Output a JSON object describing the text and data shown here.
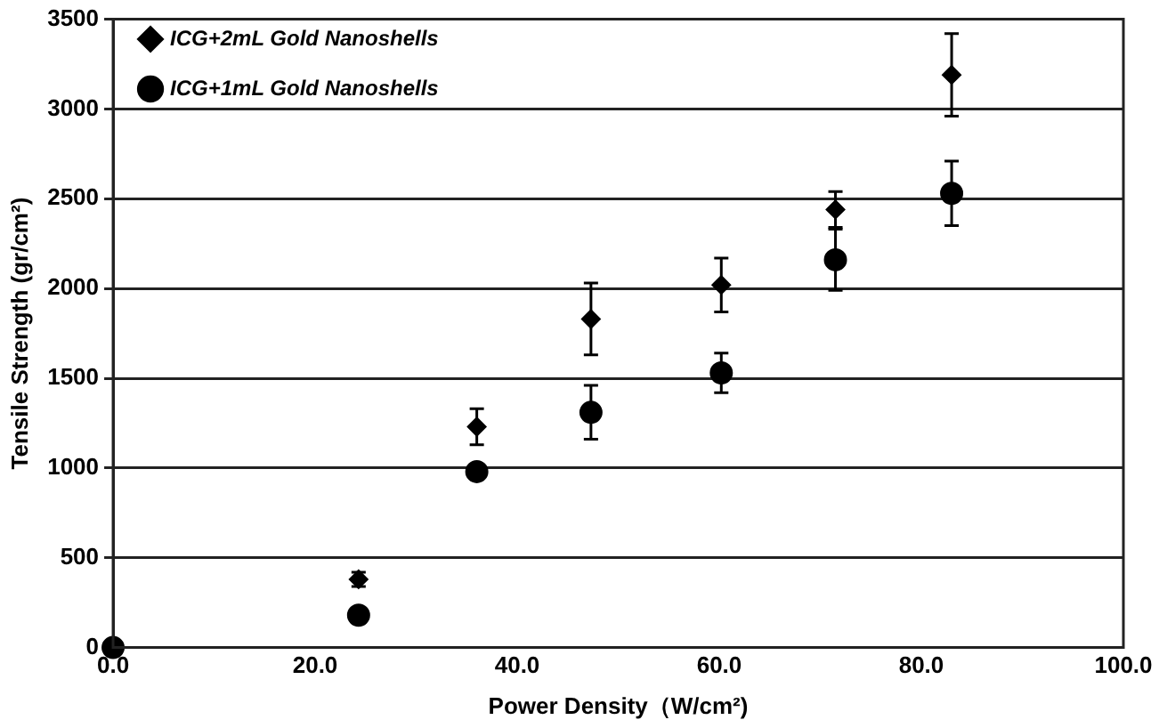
{
  "chart_data": {
    "type": "scatter",
    "xlabel": "Power Density（W/cm²)",
    "ylabel": "Tensile Strength (gr/cm²)",
    "x": [
      0,
      24.3,
      36,
      47.3,
      60.2,
      71.5,
      83
    ],
    "series": [
      {
        "name": "ICG+2mL Gold Nanoshells",
        "color": "#000000",
        "marker": "diamond",
        "values": [
          null,
          380,
          1230,
          1830,
          2020,
          2440,
          3190
        ],
        "errors": [
          null,
          40,
          100,
          200,
          150,
          100,
          230
        ]
      },
      {
        "name": "ICG+1mL Gold Nanoshells",
        "color": "#000000",
        "marker": "circle",
        "values": [
          0,
          180,
          980,
          1310,
          1530,
          2160,
          2530
        ],
        "errors": [
          null,
          null,
          40,
          150,
          110,
          170,
          180
        ]
      }
    ],
    "xlim": [
      0,
      100
    ],
    "xticks": [
      {
        "value": 0,
        "label": "0.0"
      },
      {
        "value": 20,
        "label": "20.0"
      },
      {
        "value": 40,
        "label": "40.0"
      },
      {
        "value": 60,
        "label": "60.0"
      },
      {
        "value": 80,
        "label": "80.0"
      },
      {
        "value": 100,
        "label": "100.0"
      }
    ],
    "ylim": [
      0,
      3500
    ],
    "yticks": [
      0,
      500,
      1000,
      1500,
      2000,
      2500,
      3000,
      3500
    ],
    "grid": "y",
    "legend": "top left"
  }
}
